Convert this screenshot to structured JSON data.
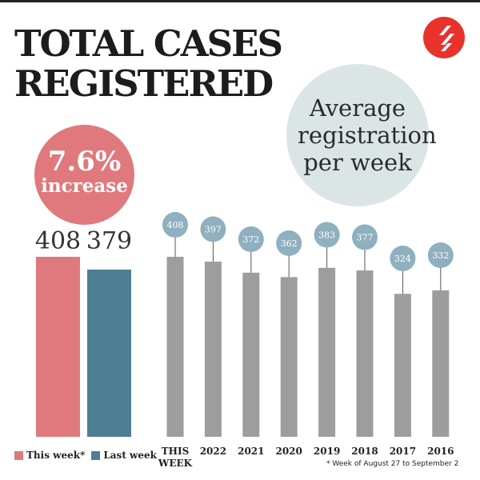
{
  "header": {
    "title": "TOTAL CASES\nREGISTERED"
  },
  "highlight": {
    "increase_value": "7.6%",
    "increase_label": "increase"
  },
  "average_label": "Average\nregistration\nper week",
  "colors": {
    "this_week": "#e0797d",
    "last_week": "#4d7e94",
    "yearly_bar": "#9d9d9d",
    "value_bubble": "#8fb0be",
    "logo": "#e8322b",
    "average_circle": "#dce5e6"
  },
  "chart_data": [
    {
      "type": "bar",
      "title": "",
      "categories": [
        "This week*",
        "Last week"
      ],
      "values": [
        408,
        379
      ],
      "ylim": [
        0,
        408
      ],
      "legend": {
        "position": "bottom-left",
        "entries": [
          "This week*",
          "Last week"
        ]
      }
    },
    {
      "type": "bar",
      "title": "Average registration per week",
      "categories": [
        "THIS\nWEEK",
        "2022",
        "2021",
        "2020",
        "2019",
        "2018",
        "2017",
        "2016"
      ],
      "values": [
        408,
        397,
        372,
        362,
        383,
        377,
        324,
        332
      ],
      "ylim": [
        0,
        408
      ]
    }
  ],
  "footnote": "* Week of August 27 to September 2"
}
